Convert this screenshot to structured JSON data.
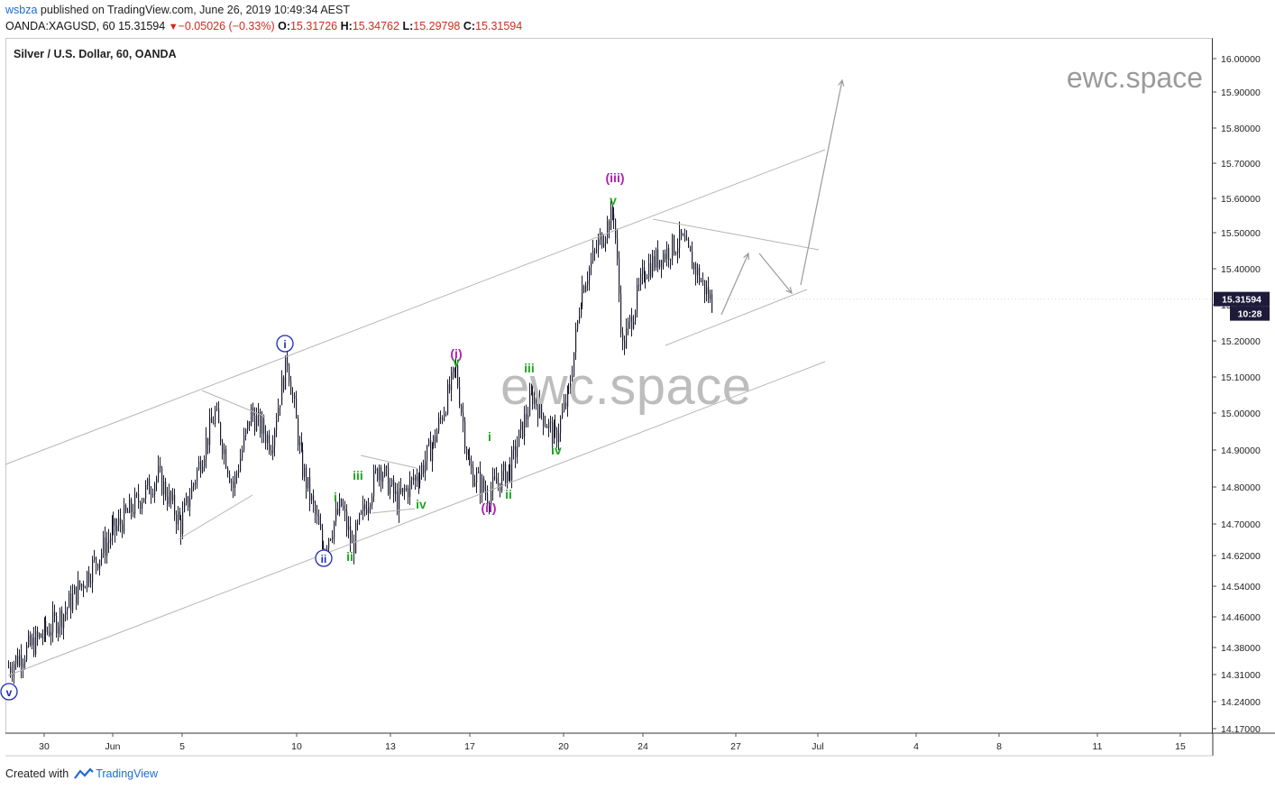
{
  "header": {
    "author": "wsbza",
    "published": " published on TradingView.com, June 26, 2019 10:49:34 AEST"
  },
  "ohlc": {
    "symbol": "OANDA:XAGUSD, 60",
    "last": "15.31594",
    "change": "−0.05026 (−0.33%)",
    "open_label": "O:",
    "open": "15.31726",
    "high_label": "H:",
    "high": "15.34762",
    "low_label": "L:",
    "low": "15.29798",
    "close_label": "C:",
    "close": "15.31594"
  },
  "chart_title": "Silver / U.S. Dollar, 60, OANDA",
  "watermark": "ewc.space",
  "price_tag": {
    "price": "15.31594",
    "countdown": "10:28"
  },
  "footer": {
    "created_with": "Created with",
    "brand": "TradingView"
  },
  "colors": {
    "up": "#1a1a2e",
    "price_tag_bg": "#1e1a3a",
    "wave_green": "#21a526",
    "wave_magenta": "#b01faf",
    "wave_blue": "#1e2bb0",
    "channel": "#b5b5b5"
  },
  "chart_data": {
    "type": "candlestick",
    "ylim": [
      14.17,
      16.0
    ],
    "y_ticks": [
      "16.00000",
      "15.90000",
      "15.80000",
      "15.70000",
      "15.60000",
      "15.50000",
      "15.40000",
      "15.30000",
      "15.20000",
      "15.10000",
      "15.00000",
      "14.90000",
      "14.80000",
      "14.70000",
      "14.62000",
      "14.54000",
      "14.46000",
      "14.38000",
      "14.31000",
      "14.24000",
      "14.17000"
    ],
    "x_ticks": [
      "30",
      "Jun",
      "5",
      "10",
      "13",
      "17",
      "20",
      "24",
      "27",
      "Jul",
      "4",
      "8",
      "11",
      "15"
    ],
    "price_path": [
      {
        "x": "May 29",
        "y": 14.33
      },
      {
        "x": "May 30",
        "y": 14.42
      },
      {
        "x": "May 31",
        "y": 14.47
      },
      {
        "x": "Jun 3",
        "y": 14.68
      },
      {
        "x": "Jun 4",
        "y": 14.83
      },
      {
        "x": "Jun 5",
        "y": 14.7
      },
      {
        "x": "Jun 6",
        "y": 15.0
      },
      {
        "x": "Jun 7",
        "y": 14.8
      },
      {
        "x": "Jun 7b",
        "y": 15.0
      },
      {
        "x": "Jun 9",
        "y": 14.92
      },
      {
        "x": "Jun 10",
        "y": 15.15
      },
      {
        "x": "Jun 10b",
        "y": 14.85
      },
      {
        "x": "Jun 11",
        "y": 14.64
      },
      {
        "x": "Jun 11b",
        "y": 14.75
      },
      {
        "x": "Jun 12",
        "y": 14.64
      },
      {
        "x": "Jun 12b",
        "y": 14.86
      },
      {
        "x": "Jun 13",
        "y": 14.76
      },
      {
        "x": "Jun 14",
        "y": 14.84
      },
      {
        "x": "Jun 14b",
        "y": 14.92
      },
      {
        "x": "Jun 16",
        "y": 15.12
      },
      {
        "x": "Jun 17",
        "y": 14.85
      },
      {
        "x": "Jun 17b",
        "y": 14.78
      },
      {
        "x": "Jun 18",
        "y": 14.85
      },
      {
        "x": "Jun 19",
        "y": 15.05
      },
      {
        "x": "Jun 20",
        "y": 14.93
      },
      {
        "x": "Jun 20b",
        "y": 15.05
      },
      {
        "x": "Jun 21",
        "y": 15.35
      },
      {
        "x": "Jun 21b",
        "y": 15.48
      },
      {
        "x": "Jun 23",
        "y": 15.56
      },
      {
        "x": "Jun 23b",
        "y": 15.18
      },
      {
        "x": "Jun 24",
        "y": 15.4
      },
      {
        "x": "Jun 25",
        "y": 15.48
      },
      {
        "x": "Jun 26",
        "y": 15.3
      }
    ],
    "wave_labels": [
      {
        "text": "v",
        "color": "blue",
        "circled": true,
        "x": "May 29",
        "y": 14.28
      },
      {
        "text": "i",
        "color": "blue",
        "circled": true,
        "x": "Jun 10",
        "y": 15.19
      },
      {
        "text": "ii",
        "color": "blue",
        "circled": true,
        "x": "Jun 11",
        "y": 14.61
      },
      {
        "text": "i",
        "color": "green",
        "x": "Jun 11b",
        "y": 14.82
      },
      {
        "text": "ii",
        "color": "green",
        "x": "Jun 12",
        "y": 14.62
      },
      {
        "text": "iii",
        "color": "green",
        "x": "Jun 12b",
        "y": 14.88
      },
      {
        "text": "iv",
        "color": "green",
        "x": "Jun 14",
        "y": 14.76
      },
      {
        "text": "(i)",
        "color": "magenta",
        "x": "Jun 16",
        "y": 15.17
      },
      {
        "text": "v",
        "color": "green",
        "x": "Jun 16",
        "y": 15.14
      },
      {
        "text": "(ii)",
        "color": "magenta",
        "x": "Jun 17b",
        "y": 14.73
      },
      {
        "text": "i",
        "color": "green",
        "x": "Jun 18",
        "y": 14.93
      },
      {
        "text": "ii",
        "color": "green",
        "x": "Jun 18",
        "y": 14.78
      },
      {
        "text": "iii",
        "color": "green",
        "x": "Jun 19",
        "y": 15.12
      },
      {
        "text": "iv",
        "color": "green",
        "x": "Jun 20",
        "y": 14.89
      },
      {
        "text": "(iii)",
        "color": "magenta",
        "x": "Jun 23",
        "y": 15.73
      },
      {
        "text": "v",
        "color": "green",
        "x": "Jun 23",
        "y": 15.62
      }
    ]
  }
}
